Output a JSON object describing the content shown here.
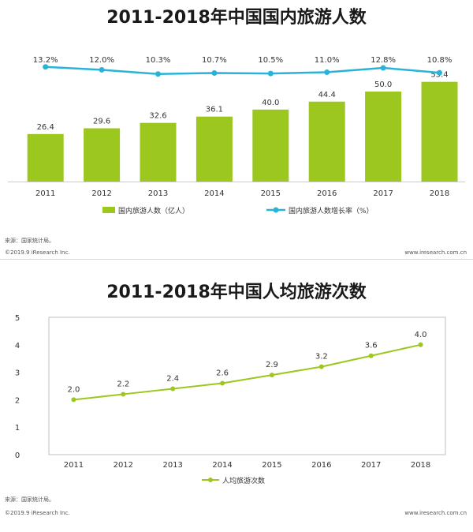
{
  "chart_data": [
    {
      "type": "bar",
      "title": "2011-2018年中国国内旅游人数",
      "categories": [
        "2011",
        "2012",
        "2013",
        "2014",
        "2015",
        "2016",
        "2017",
        "2018"
      ],
      "series": [
        {
          "name": "国内旅游人数（亿人）",
          "type": "bar",
          "values": [
            26.4,
            29.6,
            32.6,
            36.1,
            40.0,
            44.4,
            50.0,
            55.4
          ],
          "labels": [
            "26.4",
            "29.6",
            "32.6",
            "36.1",
            "40.0",
            "44.4",
            "50.0",
            "55.4"
          ]
        },
        {
          "name": "国内旅游人数增长率（%）",
          "type": "line",
          "values": [
            13.2,
            12.0,
            10.3,
            10.7,
            10.5,
            11.0,
            12.8,
            10.8
          ],
          "labels": [
            "13.2%",
            "12.0%",
            "10.3%",
            "10.7%",
            "10.5%",
            "11.0%",
            "12.8%",
            "10.8%"
          ]
        }
      ],
      "colors": {
        "bar": "#9bc71f",
        "line": "#2ab3d8"
      },
      "source": "来源：国家统计局。",
      "copyright": "©2019.9 iResearch Inc.",
      "site": "www.iresearch.com.cn"
    },
    {
      "type": "line",
      "title": "2011-2018年中国人均旅游次数",
      "categories": [
        "2011",
        "2012",
        "2013",
        "2014",
        "2015",
        "2016",
        "2017",
        "2018"
      ],
      "series": [
        {
          "name": "人均旅游次数",
          "values": [
            2.0,
            2.2,
            2.4,
            2.6,
            2.9,
            3.2,
            3.6,
            4.0
          ],
          "labels": [
            "2.0",
            "2.2",
            "2.4",
            "2.6",
            "2.9",
            "3.2",
            "3.6",
            "4.0"
          ]
        }
      ],
      "ylim": [
        0,
        5
      ],
      "yticks": [
        "0",
        "1",
        "2",
        "3",
        "4",
        "5"
      ],
      "colors": {
        "line": "#9bc71f"
      },
      "source": "来源：国家统计局。",
      "copyright": "©2019.9 iResearch Inc.",
      "site": "www.iresearch.com.cn"
    }
  ]
}
